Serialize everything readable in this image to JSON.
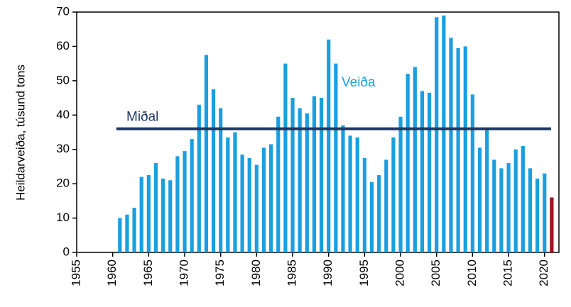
{
  "chart_data": {
    "type": "bar",
    "y_label": "Heildarveiða, túsund tons",
    "annotation": "Veiða",
    "mean": {
      "label": "Miðal",
      "value": 36
    },
    "x": [
      1961,
      1962,
      1963,
      1964,
      1965,
      1966,
      1967,
      1968,
      1969,
      1970,
      1971,
      1972,
      1973,
      1974,
      1975,
      1976,
      1977,
      1978,
      1979,
      1980,
      1981,
      1982,
      1983,
      1984,
      1985,
      1986,
      1987,
      1988,
      1989,
      1990,
      1991,
      1992,
      1993,
      1994,
      1995,
      1996,
      1997,
      1998,
      1999,
      2000,
      2001,
      2002,
      2003,
      2004,
      2005,
      2006,
      2007,
      2008,
      2009,
      2010,
      2011,
      2012,
      2013,
      2014,
      2015,
      2016,
      2017,
      2018,
      2019,
      2020,
      2021
    ],
    "values": [
      10,
      11,
      13,
      22,
      22.5,
      26,
      21.5,
      21,
      28,
      29.5,
      33,
      43,
      57.5,
      47.5,
      42,
      33.5,
      35,
      28.5,
      27.5,
      25.5,
      30.5,
      31.5,
      39.5,
      55,
      45,
      42,
      40.5,
      45.5,
      45,
      62,
      55,
      37,
      34,
      33.5,
      27.5,
      20.5,
      22.5,
      27,
      33.5,
      39.5,
      52,
      54,
      47,
      46.5,
      68.5,
      69,
      62.5,
      59.5,
      60,
      46,
      30.5,
      36,
      27,
      24.5,
      26,
      30,
      31,
      24.5,
      21.5,
      23,
      16
    ],
    "colors": [
      "#1a9fe0",
      "#1a9fe0",
      "#1a9fe0",
      "#1a9fe0",
      "#1a9fe0",
      "#1a9fe0",
      "#1a9fe0",
      "#1a9fe0",
      "#1a9fe0",
      "#1a9fe0",
      "#1a9fe0",
      "#1a9fe0",
      "#1a9fe0",
      "#1a9fe0",
      "#1a9fe0",
      "#1a9fe0",
      "#1a9fe0",
      "#1a9fe0",
      "#1a9fe0",
      "#1a9fe0",
      "#1a9fe0",
      "#1a9fe0",
      "#1a9fe0",
      "#1a9fe0",
      "#1a9fe0",
      "#1a9fe0",
      "#1a9fe0",
      "#1a9fe0",
      "#1a9fe0",
      "#1a9fe0",
      "#1a9fe0",
      "#1a9fe0",
      "#1a9fe0",
      "#1a9fe0",
      "#1a9fe0",
      "#1a9fe0",
      "#1a9fe0",
      "#1a9fe0",
      "#1a9fe0",
      "#1a9fe0",
      "#1a9fe0",
      "#1a9fe0",
      "#1a9fe0",
      "#1a9fe0",
      "#1a9fe0",
      "#1a9fe0",
      "#1a9fe0",
      "#1a9fe0",
      "#1a9fe0",
      "#1a9fe0",
      "#1a9fe0",
      "#1a9fe0",
      "#1a9fe0",
      "#1a9fe0",
      "#1a9fe0",
      "#1a9fe0",
      "#1a9fe0",
      "#1a9fe0",
      "#1a9fe0",
      "#1a9fe0",
      "#a0101e"
    ],
    "mean_color": "#1f3864",
    "xlim": [
      1955,
      2022
    ],
    "xticks": [
      1955,
      1960,
      1965,
      1970,
      1975,
      1980,
      1985,
      1990,
      1995,
      2000,
      2005,
      2010,
      2015,
      2020
    ],
    "ylim": [
      0,
      70
    ],
    "yticks": [
      0,
      10,
      20,
      30,
      40,
      50,
      60,
      70
    ]
  }
}
